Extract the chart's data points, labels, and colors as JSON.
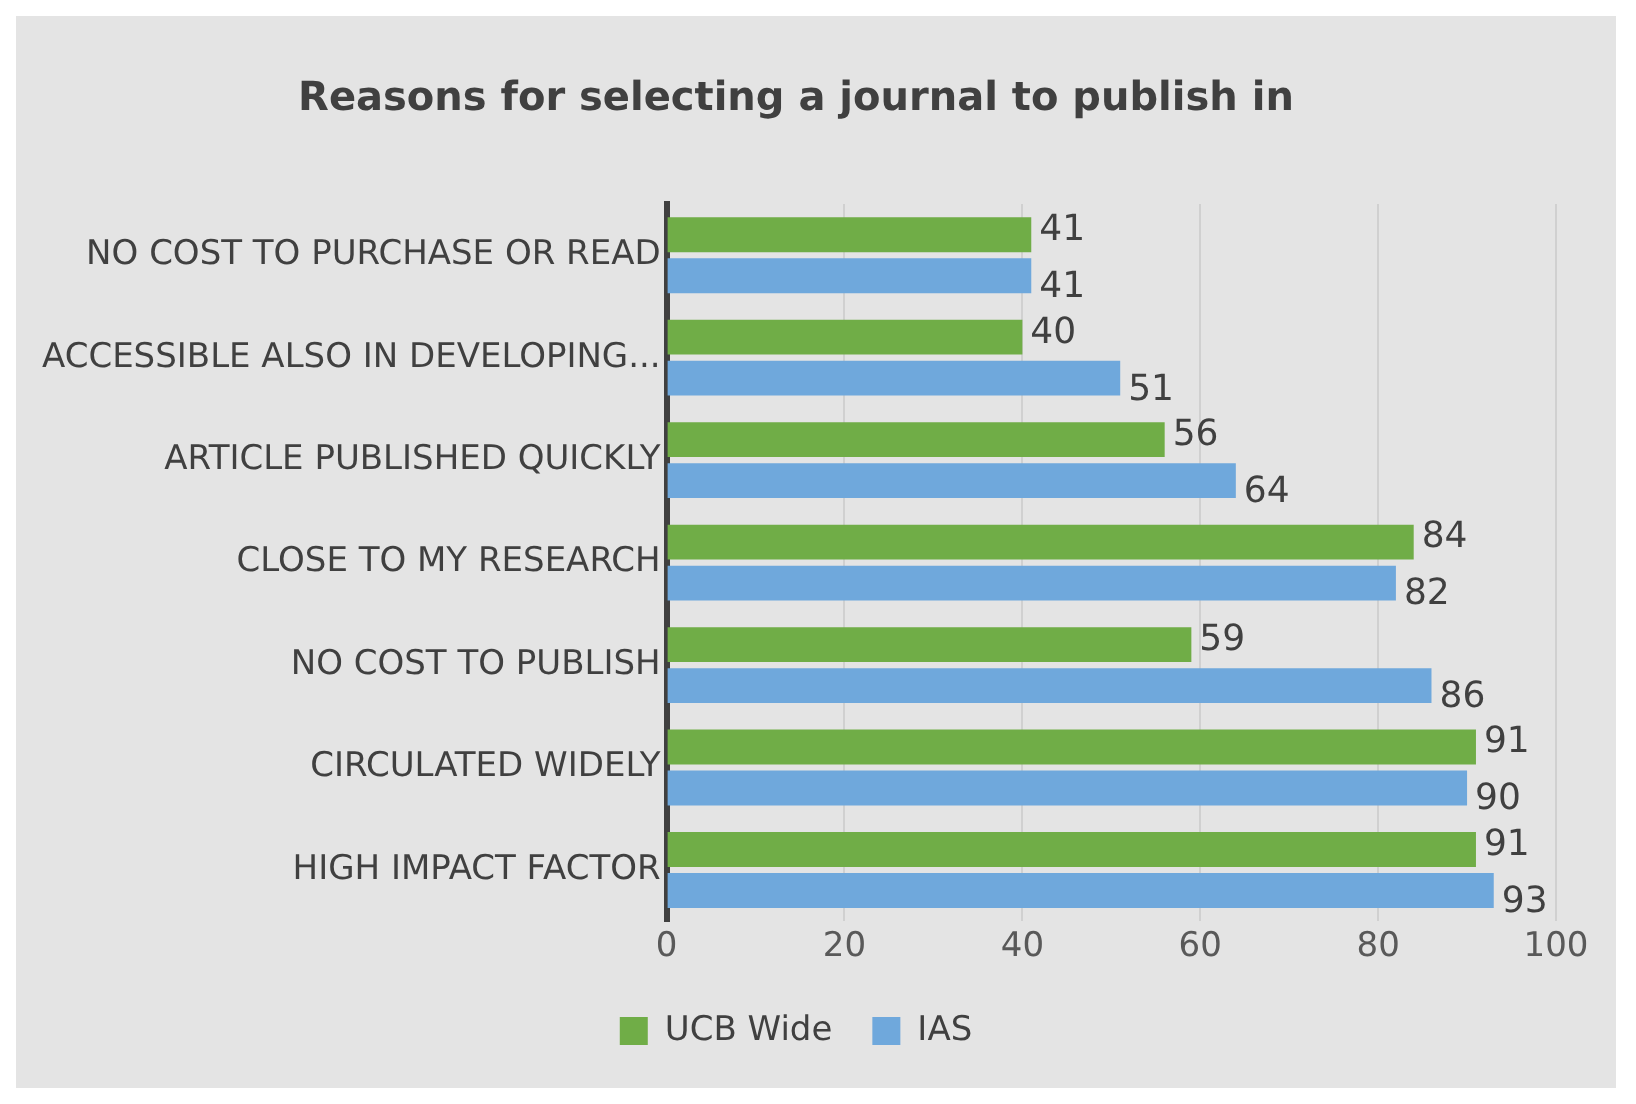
{
  "chart_data": {
    "type": "bar",
    "orientation": "horizontal",
    "title": "Reasons for selecting a journal to publish in",
    "categories": [
      "NO COST TO PURCHASE OR READ",
      "ACCESSIBLE ALSO IN DEVELOPING...",
      "ARTICLE PUBLISHED QUICKLY",
      "CLOSE TO MY RESEARCH",
      "NO COST TO PUBLISH",
      "CIRCULATED WIDELY",
      "HIGH IMPACT FACTOR"
    ],
    "series": [
      {
        "name": "UCB Wide",
        "color": "#70ad47",
        "values": [
          41,
          40,
          56,
          84,
          59,
          91,
          91
        ]
      },
      {
        "name": "IAS",
        "color": "#6fa8dc",
        "values": [
          41,
          51,
          64,
          82,
          86,
          90,
          93
        ]
      }
    ],
    "xlim": [
      0,
      100
    ],
    "xticks": [
      0,
      20,
      40,
      60,
      80,
      100
    ],
    "grid": "x",
    "legend": "bottom",
    "data_labels": true
  }
}
